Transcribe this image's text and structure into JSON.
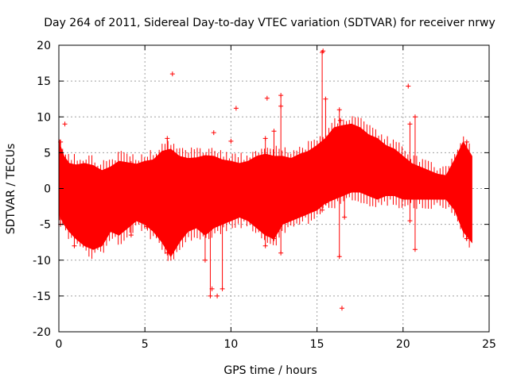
{
  "chart_data": {
    "type": "scatter",
    "title": "Day 264 of 2011, Sidereal Day-to-day VTEC variation (SDTVAR) for receiver nrwy",
    "xlabel": "GPS time / hours",
    "ylabel": "SDTVAR / TECUs",
    "xlim": [
      0,
      25
    ],
    "ylim": [
      -20,
      20
    ],
    "xticks": [
      0,
      5,
      10,
      15,
      20,
      25
    ],
    "yticks": [
      -20,
      -15,
      -10,
      -5,
      0,
      5,
      10,
      15,
      20
    ],
    "grid": true,
    "marker": "+",
    "color": "#ff0000",
    "band_upper": [
      [
        0.0,
        6.5
      ],
      [
        0.3,
        4.5
      ],
      [
        0.6,
        3.5
      ],
      [
        1.0,
        3.3
      ],
      [
        1.5,
        3.5
      ],
      [
        2.0,
        3.2
      ],
      [
        2.5,
        2.5
      ],
      [
        3.0,
        3.0
      ],
      [
        3.5,
        3.8
      ],
      [
        4.0,
        3.6
      ],
      [
        4.5,
        3.4
      ],
      [
        5.0,
        3.8
      ],
      [
        5.5,
        4.0
      ],
      [
        6.0,
        5.2
      ],
      [
        6.5,
        5.5
      ],
      [
        7.0,
        4.5
      ],
      [
        7.5,
        4.2
      ],
      [
        8.0,
        4.3
      ],
      [
        8.5,
        4.6
      ],
      [
        9.0,
        4.5
      ],
      [
        9.5,
        4.0
      ],
      [
        10.0,
        3.8
      ],
      [
        10.5,
        3.5
      ],
      [
        11.0,
        3.8
      ],
      [
        11.5,
        4.5
      ],
      [
        12.0,
        4.8
      ],
      [
        12.5,
        4.5
      ],
      [
        13.0,
        4.5
      ],
      [
        13.5,
        4.2
      ],
      [
        14.0,
        4.8
      ],
      [
        14.5,
        5.2
      ],
      [
        15.0,
        6.0
      ],
      [
        15.5,
        7.0
      ],
      [
        16.0,
        8.5
      ],
      [
        16.5,
        8.8
      ],
      [
        17.0,
        9.0
      ],
      [
        17.5,
        8.5
      ],
      [
        18.0,
        7.5
      ],
      [
        18.5,
        7.0
      ],
      [
        19.0,
        6.0
      ],
      [
        19.5,
        5.5
      ],
      [
        20.0,
        4.5
      ],
      [
        20.5,
        3.5
      ],
      [
        21.0,
        3.0
      ],
      [
        21.5,
        2.5
      ],
      [
        22.0,
        2.0
      ],
      [
        22.5,
        1.8
      ],
      [
        23.0,
        4.0
      ],
      [
        23.5,
        6.5
      ],
      [
        24.0,
        4.5
      ]
    ],
    "band_lower": [
      [
        0.0,
        -3.5
      ],
      [
        0.3,
        -5.0
      ],
      [
        0.6,
        -6.0
      ],
      [
        1.0,
        -7.0
      ],
      [
        1.5,
        -8.0
      ],
      [
        2.0,
        -8.5
      ],
      [
        2.5,
        -8.0
      ],
      [
        3.0,
        -6.0
      ],
      [
        3.5,
        -6.5
      ],
      [
        4.0,
        -5.5
      ],
      [
        4.5,
        -4.5
      ],
      [
        5.0,
        -5.0
      ],
      [
        5.5,
        -6.0
      ],
      [
        6.0,
        -7.5
      ],
      [
        6.5,
        -9.5
      ],
      [
        7.0,
        -7.5
      ],
      [
        7.5,
        -6.0
      ],
      [
        8.0,
        -5.5
      ],
      [
        8.5,
        -6.5
      ],
      [
        9.0,
        -5.5
      ],
      [
        9.5,
        -5.0
      ],
      [
        10.0,
        -4.5
      ],
      [
        10.5,
        -4.0
      ],
      [
        11.0,
        -4.5
      ],
      [
        11.5,
        -5.5
      ],
      [
        12.0,
        -6.5
      ],
      [
        12.5,
        -7.0
      ],
      [
        13.0,
        -5.0
      ],
      [
        13.5,
        -4.5
      ],
      [
        14.0,
        -4.0
      ],
      [
        14.5,
        -3.5
      ],
      [
        15.0,
        -3.0
      ],
      [
        15.5,
        -2.0
      ],
      [
        16.0,
        -1.5
      ],
      [
        16.5,
        -1.0
      ],
      [
        17.0,
        -0.5
      ],
      [
        17.5,
        -0.5
      ],
      [
        18.0,
        -1.0
      ],
      [
        18.5,
        -1.5
      ],
      [
        19.0,
        -1.0
      ],
      [
        19.5,
        -1.0
      ],
      [
        20.0,
        -1.5
      ],
      [
        20.5,
        -1.5
      ],
      [
        21.0,
        -1.5
      ],
      [
        21.5,
        -1.5
      ],
      [
        22.0,
        -1.5
      ],
      [
        22.5,
        -1.5
      ],
      [
        23.0,
        -3.0
      ],
      [
        23.5,
        -6.0
      ],
      [
        24.0,
        -7.5
      ]
    ],
    "spikes": [
      {
        "x": 0.1,
        "low": -5.0,
        "high": 6.5
      },
      {
        "x": 0.9,
        "low": -8.0,
        "high": 3.0
      },
      {
        "x": 4.2,
        "low": -6.5,
        "high": 3.5
      },
      {
        "x": 6.3,
        "low": -9.0,
        "high": 7.0
      },
      {
        "x": 8.5,
        "low": -10.0,
        "high": 4.0
      },
      {
        "x": 8.8,
        "low": -15.0,
        "high": 3.5
      },
      {
        "x": 9.5,
        "low": -14.0,
        "high": 3.5
      },
      {
        "x": 12.0,
        "low": -8.0,
        "high": 7.0
      },
      {
        "x": 12.5,
        "low": -7.0,
        "high": 8.0
      },
      {
        "x": 12.9,
        "low": -9.0,
        "high": 13.0
      },
      {
        "x": 15.3,
        "low": -3.0,
        "high": 19.0
      },
      {
        "x": 15.5,
        "low": -2.0,
        "high": 12.5
      },
      {
        "x": 16.3,
        "low": -9.5,
        "high": 11.0
      },
      {
        "x": 16.6,
        "low": -4.0,
        "high": 8.5
      },
      {
        "x": 20.4,
        "low": -4.5,
        "high": 9.0
      },
      {
        "x": 20.7,
        "low": -8.5,
        "high": 10.0
      },
      {
        "x": 23.7,
        "low": -7.0,
        "high": 6.5
      }
    ],
    "outliers": [
      [
        0.35,
        9.0
      ],
      [
        6.6,
        16.0
      ],
      [
        9.0,
        7.8
      ],
      [
        10.0,
        6.6
      ],
      [
        10.3,
        11.2
      ],
      [
        12.1,
        12.6
      ],
      [
        12.9,
        11.5
      ],
      [
        15.35,
        19.2
      ],
      [
        16.35,
        9.5
      ],
      [
        16.45,
        -16.7
      ],
      [
        20.3,
        14.3
      ],
      [
        3.8,
        -5.3
      ],
      [
        5.1,
        -5.3
      ],
      [
        8.9,
        -14.0
      ],
      [
        9.2,
        -15.0
      ]
    ]
  }
}
